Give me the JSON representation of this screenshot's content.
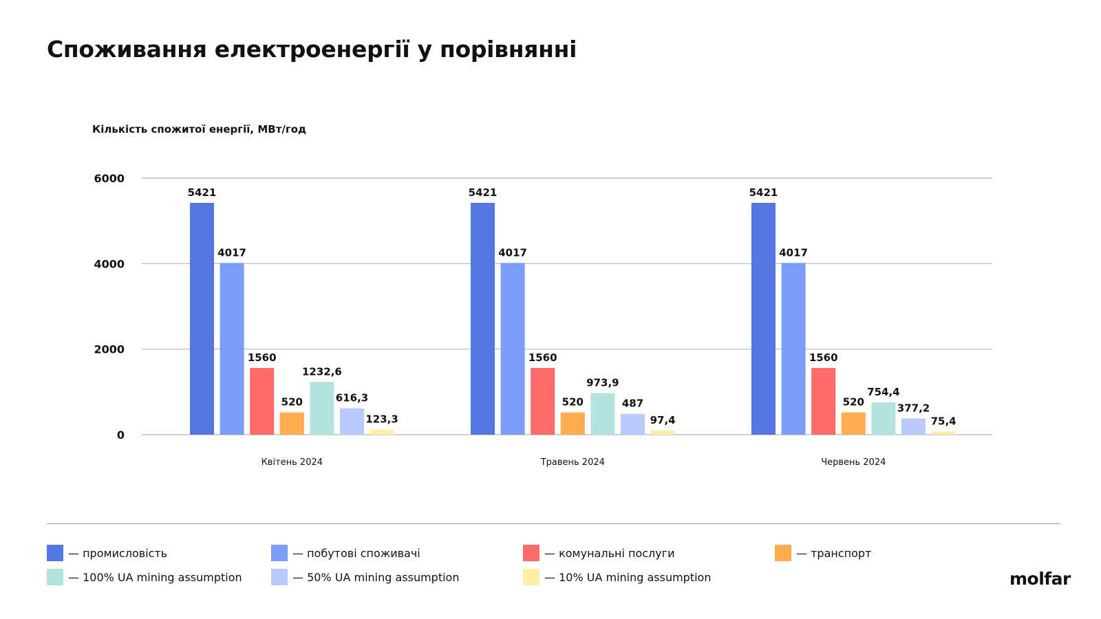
{
  "page_title": "Споживання електроенергії у порівнянні",
  "logo_text": "molfar",
  "chart_data": {
    "type": "bar",
    "title": "",
    "ylabel": "Кількість спожитої енергії, МВт/год",
    "xlabel": "",
    "ylim": [
      0,
      6000
    ],
    "yticks": [
      0,
      2000,
      4000,
      6000
    ],
    "grid": true,
    "legend_position": "bottom",
    "categories": [
      "Квітень 2024",
      "Травень 2024",
      "Червень 2024"
    ],
    "series": [
      {
        "name": "— промисловість",
        "color": "#5476e0",
        "values": [
          5421,
          5421,
          5421
        ],
        "labels": [
          "5421",
          "5421",
          "5421"
        ]
      },
      {
        "name": "— побутові споживачі",
        "color": "#7c9df9",
        "values": [
          4017,
          4017,
          4017
        ],
        "labels": [
          "4017",
          "4017",
          "4017"
        ]
      },
      {
        "name": "— комунальні послуги",
        "color": "#ff6b6b",
        "values": [
          1560,
          1560,
          1560
        ],
        "labels": [
          "1560",
          "1560",
          "1560"
        ]
      },
      {
        "name": "— транспорт",
        "color": "#ffab4f",
        "values": [
          520,
          520,
          520
        ],
        "labels": [
          "520",
          "520",
          "520"
        ]
      },
      {
        "name": "— 100% UA mining assumption",
        "color": "#b2e3dc",
        "values": [
          1232.6,
          973.9,
          754.4
        ],
        "labels": [
          "1232,6",
          "973,9",
          "754,4"
        ]
      },
      {
        "name": "— 50% UA mining assumption",
        "color": "#bccafb",
        "values": [
          616.3,
          487,
          377.2
        ],
        "labels": [
          "616,3",
          "487",
          "377,2"
        ]
      },
      {
        "name": "— 10% UA mining assumption",
        "color": "#ffeea6",
        "values": [
          123.3,
          97.4,
          75.4
        ],
        "labels": [
          "123,3",
          "97,4",
          "75,4"
        ]
      }
    ]
  }
}
